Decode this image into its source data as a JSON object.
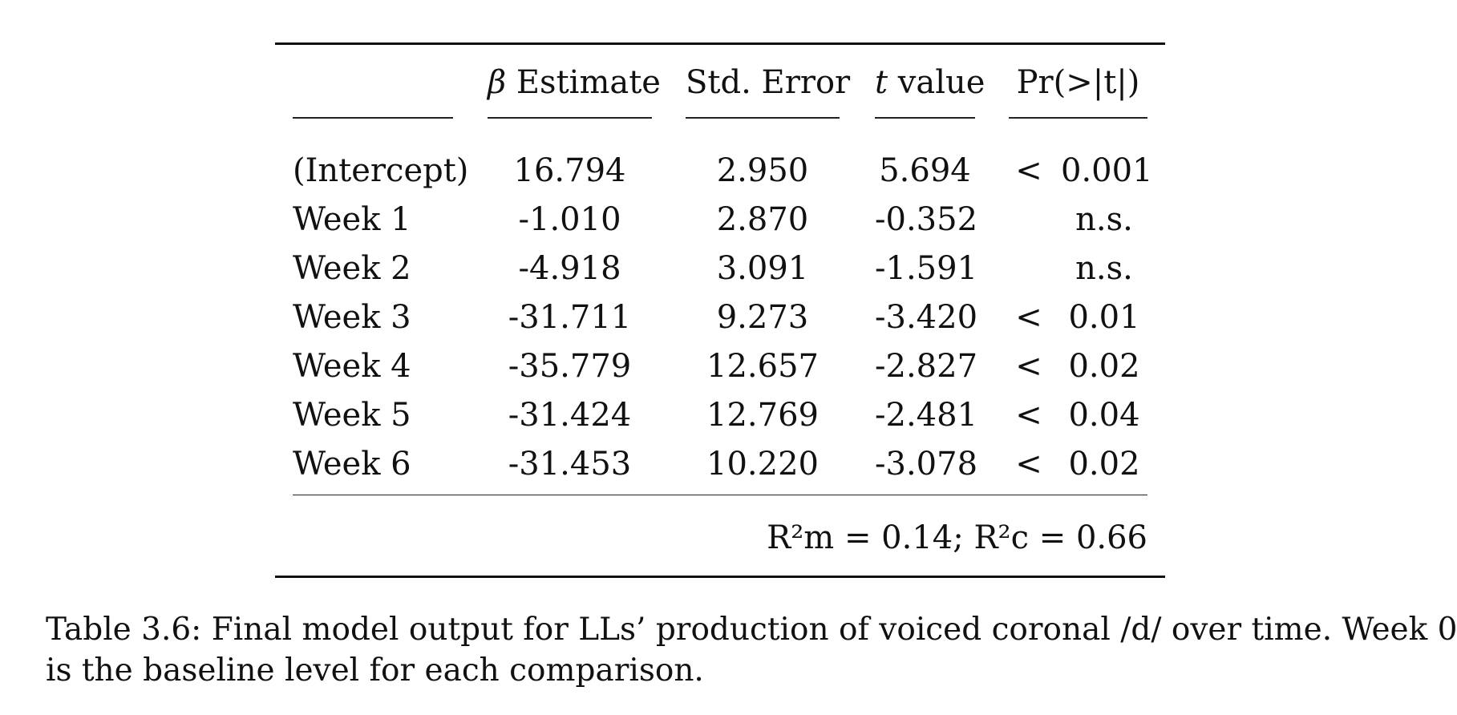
{
  "table": {
    "headers": [
      {
        "math": "β",
        "text": "Estimate"
      },
      {
        "math": "",
        "text": "Std. Error"
      },
      {
        "math": "t",
        "text": "value"
      },
      {
        "math": "",
        "text": "Pr(>|t|)"
      }
    ],
    "rows": [
      {
        "label": "(Intercept)",
        "beta": "16.794",
        "se": "2.950",
        "t": "5.694",
        "rel": "<",
        "p": "0.001"
      },
      {
        "label": "Week 1",
        "beta": "-1.010",
        "se": "2.870",
        "t": "-0.352",
        "rel": "",
        "p": "n.s."
      },
      {
        "label": "Week 2",
        "beta": "-4.918",
        "se": "3.091",
        "t": "-1.591",
        "rel": "",
        "p": "n.s."
      },
      {
        "label": "Week 3",
        "beta": "-31.711",
        "se": "9.273",
        "t": "-3.420",
        "rel": "<",
        "p": "0.01"
      },
      {
        "label": "Week 4",
        "beta": "-35.779",
        "se": "12.657",
        "t": "-2.827",
        "rel": "<",
        "p": "0.02"
      },
      {
        "label": "Week 5",
        "beta": "-31.424",
        "se": "12.769",
        "t": "-2.481",
        "rel": "<",
        "p": "0.04"
      },
      {
        "label": "Week 6",
        "beta": "-31.453",
        "se": "10.220",
        "t": "-3.078",
        "rel": "<",
        "p": "0.02"
      }
    ],
    "r2_text": "R²m = 0.14; R²c = 0.66"
  },
  "caption": {
    "line1": "Table 3.6: Final model output for LLs’ production of voiced coronal /d/ over time. Week 0",
    "line2": "is the baseline level for each comparison."
  }
}
